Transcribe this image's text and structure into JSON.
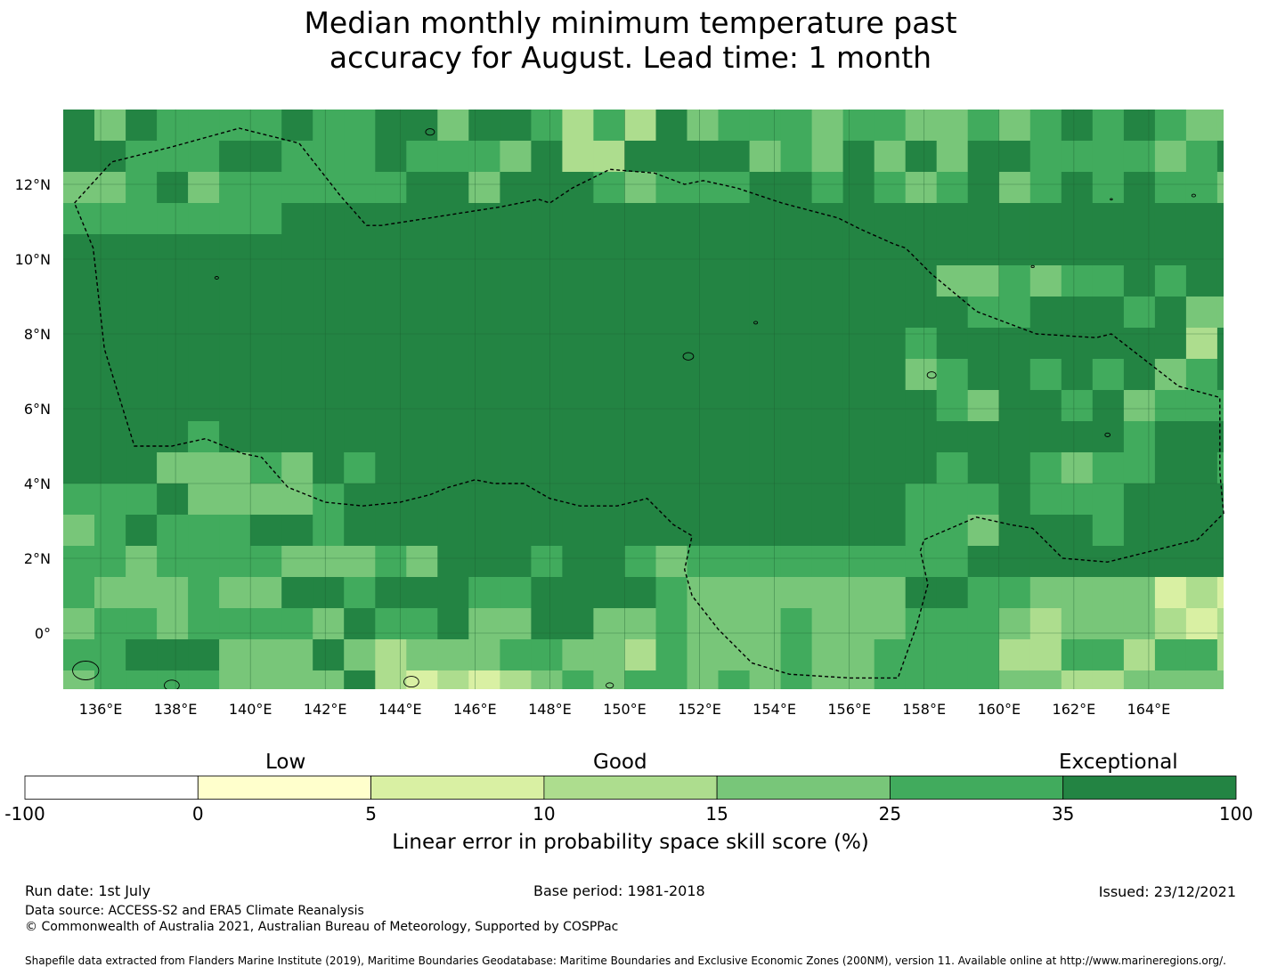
{
  "title": {
    "line1": "Median monthly minimum temperature past",
    "line2": "accuracy for August. Lead time: 1 month"
  },
  "map": {
    "lon_range": [
      135,
      166
    ],
    "lat_range": [
      -1.5,
      14
    ],
    "lon_ticks": [
      136,
      138,
      140,
      142,
      144,
      146,
      148,
      150,
      152,
      154,
      156,
      158,
      160,
      162,
      164
    ],
    "lon_tick_labels": [
      "136°E",
      "138°E",
      "140°E",
      "142°E",
      "144°E",
      "146°E",
      "148°E",
      "150°E",
      "152°E",
      "154°E",
      "156°E",
      "158°E",
      "160°E",
      "162°E",
      "164°E"
    ],
    "lat_ticks": [
      0,
      2,
      4,
      6,
      8,
      10,
      12
    ],
    "lat_tick_labels": [
      "0°",
      "2°N",
      "4°N",
      "6°N",
      "8°N",
      "10°N",
      "12°N"
    ],
    "eez_outline_color": "#000000",
    "gridlines": true
  },
  "colorbar": {
    "bounds": [
      -100,
      0,
      5,
      10,
      15,
      25,
      35,
      100
    ],
    "tick_labels": [
      "-100",
      "0",
      "5",
      "10",
      "15",
      "25",
      "35",
      "100"
    ],
    "colors": [
      "#ffffff",
      "#ffffcc",
      "#d9f0a3",
      "#addd8e",
      "#78c679",
      "#41ab5d",
      "#238443"
    ],
    "band_labels": [
      "Low",
      "Good",
      "Exceptional"
    ],
    "label": "Linear error in probability space skill score (%)"
  },
  "footer": {
    "run_date": "Run date: 1st July",
    "base_period": "Base period: 1981-2018",
    "issued": "Issued: 23/12/2021",
    "data_source": "Data source: ACCESS-S2 and ERA5 Climate Reanalysis",
    "copyright": "© Commonwealth of Australia 2021, Australian Bureau of Meteorology, Supported by COSPPac",
    "shapefile": "Shapefile data extracted from Flanders Marine Institute (2019), Maritime Boundaries Geodatabase: Maritime Boundaries and Exclusive Economic Zones (200NM), version 11. Available online at http://www.marineregions.org/."
  }
}
